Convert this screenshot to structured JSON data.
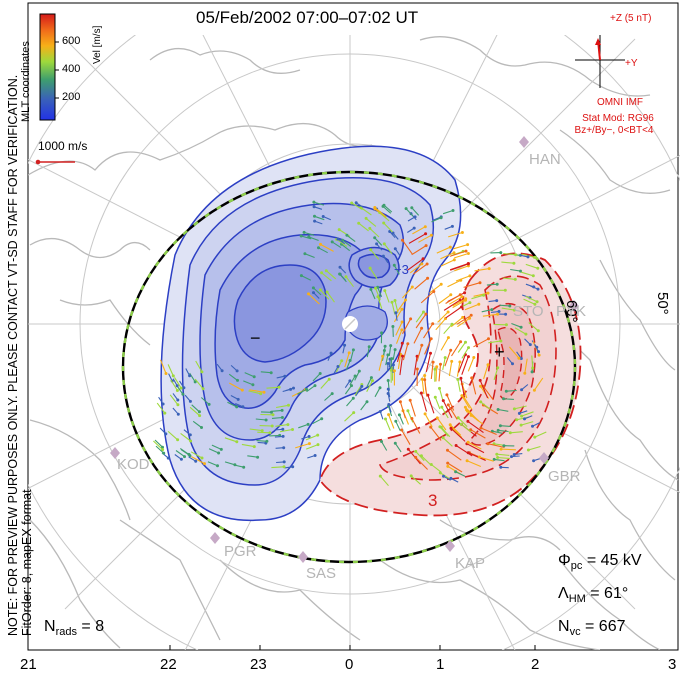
{
  "title": "05/Feb/2002  07:00–07:02 UT",
  "note_lines": [
    "NOTE: FOR PREVIEW PURPOSES ONLY. PLEASE CONTACT VT-SD STAFF FOR VERIFICATION.",
    "FitOrder: 8, mapEX format"
  ],
  "colorbar": {
    "axis_label": "Vel [m/s]",
    "ticks": [
      "600",
      "400",
      "200"
    ],
    "coord_label": "MLT coordinates",
    "colors": [
      "#d51a1a",
      "#f06a1a",
      "#f7b018",
      "#9ed93c",
      "#3e9e6e",
      "#3a62b8",
      "#2232e6"
    ]
  },
  "vector_scale_label": "1000 m/s",
  "imf": {
    "z_label": "+Z (5 nT)",
    "y_label": "+Y",
    "source": "OMNI IMF",
    "model_line1": "Stat Mod: RG96",
    "model_line2": "Bz+/By−, 0<BT<4"
  },
  "mlt_ticks": [
    "21",
    "22",
    "23",
    "0",
    "1",
    "2",
    "3"
  ],
  "latitude_labels": [
    "60°",
    "50°"
  ],
  "sites": [
    "HAN",
    "STO",
    "PYK",
    "KOD",
    "PGR",
    "SAS",
    "KAP",
    "GBR"
  ],
  "contour_labels": [
    "−",
    "+",
    "3",
    "−3"
  ],
  "stats": {
    "pcpd_symbol": "Φ",
    "pcpd_sub": "pc",
    "pcpd_value": "= 45 kV",
    "hm_symbol": "Λ",
    "hm_sub": "HM",
    "hm_value": "= 61°",
    "nvc_symbol": "N",
    "nvc_sub": "vc",
    "nvc_value": "= 667",
    "nrads_symbol": "N",
    "nrads_sub": "rads",
    "nrads_value": "= 8"
  },
  "colors": {
    "negative_cell": "#2c3fc4",
    "positive_cell": "#d22020",
    "heppner_maynard": "#000000",
    "hm_dash": "#8ed04a",
    "coastline": "#b9b9b9"
  }
}
